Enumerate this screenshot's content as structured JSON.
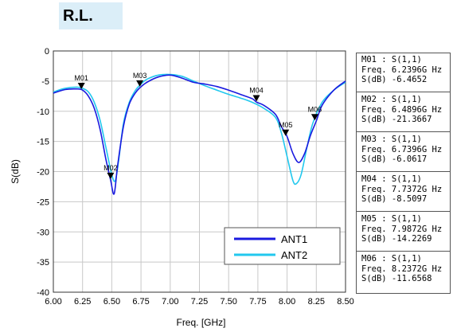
{
  "header": {
    "title": "R.L."
  },
  "chart_data": {
    "type": "line",
    "title": "R.L.",
    "xlabel": "Freq. [GHz]",
    "ylabel": "S(dB)",
    "xlim": [
      6.0,
      8.5
    ],
    "ylim": [
      -40,
      0
    ],
    "xticks": [
      "6.00",
      "6.25",
      "6.50",
      "6.75",
      "7.00",
      "7.25",
      "7.50",
      "7.75",
      "8.00",
      "8.25",
      "8.50"
    ],
    "yticks": [
      "0",
      "-5",
      "-10",
      "-15",
      "-20",
      "-25",
      "-30",
      "-35",
      "-40"
    ],
    "grid": true,
    "legend_position": "bottom-right",
    "series": [
      {
        "name": "ANT1",
        "color": "#1a1adf",
        "x": [
          6.0,
          6.1,
          6.2,
          6.25,
          6.3,
          6.35,
          6.4,
          6.45,
          6.49,
          6.52,
          6.55,
          6.6,
          6.65,
          6.7,
          6.74,
          6.8,
          6.9,
          7.0,
          7.1,
          7.2,
          7.3,
          7.4,
          7.5,
          7.6,
          7.7,
          7.74,
          7.8,
          7.9,
          7.95,
          8.0,
          8.05,
          8.1,
          8.15,
          8.2,
          8.25,
          8.3,
          8.4,
          8.5
        ],
        "y": [
          -7.0,
          -6.4,
          -6.3,
          -6.5,
          -7.5,
          -9.5,
          -13.0,
          -18.0,
          -21.4,
          -23.7,
          -19.0,
          -12.5,
          -8.8,
          -7.0,
          -6.1,
          -5.2,
          -4.3,
          -4.0,
          -4.5,
          -5.2,
          -5.5,
          -5.9,
          -6.5,
          -7.2,
          -7.9,
          -8.5,
          -9.0,
          -10.5,
          -12.5,
          -14.2,
          -17.0,
          -18.5,
          -17.0,
          -14.0,
          -11.6,
          -9.0,
          -6.5,
          -5.0
        ]
      },
      {
        "name": "ANT2",
        "color": "#22c8ee",
        "x": [
          6.0,
          6.1,
          6.2,
          6.25,
          6.3,
          6.35,
          6.4,
          6.45,
          6.5,
          6.53,
          6.56,
          6.6,
          6.65,
          6.7,
          6.75,
          6.8,
          6.9,
          7.0,
          7.1,
          7.2,
          7.3,
          7.4,
          7.5,
          7.6,
          7.7,
          7.8,
          7.9,
          7.95,
          8.0,
          8.05,
          8.08,
          8.12,
          8.17,
          8.22,
          8.3,
          8.4,
          8.5
        ],
        "y": [
          -6.8,
          -6.2,
          -6.0,
          -6.2,
          -6.8,
          -8.5,
          -11.5,
          -16.0,
          -20.5,
          -21.5,
          -18.0,
          -12.0,
          -8.5,
          -6.6,
          -5.5,
          -4.7,
          -4.0,
          -3.9,
          -4.2,
          -5.0,
          -5.8,
          -6.5,
          -7.2,
          -7.8,
          -8.5,
          -9.5,
          -11.0,
          -13.5,
          -17.5,
          -21.5,
          -22.0,
          -20.5,
          -16.0,
          -12.0,
          -8.5,
          -6.5,
          -5.2
        ]
      }
    ],
    "markers": [
      {
        "id": "M01",
        "x": 6.2396,
        "y": -6.4652,
        "title": "M01 : S(1,1)",
        "freq": "Freq. 6.2396G Hz",
        "sdb": "S(dB) -6.4652"
      },
      {
        "id": "M02",
        "x": 6.4896,
        "y": -21.3667,
        "title": "M02 : S(1,1)",
        "freq": "Freq. 6.4896G Hz",
        "sdb": "S(dB) -21.3667"
      },
      {
        "id": "M03",
        "x": 6.7396,
        "y": -6.0617,
        "title": "M03 : S(1,1)",
        "freq": "Freq. 6.7396G Hz",
        "sdb": "S(dB) -6.0617"
      },
      {
        "id": "M04",
        "x": 7.7372,
        "y": -8.5097,
        "title": "M04 : S(1,1)",
        "freq": "Freq. 7.7372G Hz",
        "sdb": "S(dB) -8.5097"
      },
      {
        "id": "M05",
        "x": 7.9872,
        "y": -14.2269,
        "title": "M05 : S(1,1)",
        "freq": "Freq. 7.9872G Hz",
        "sdb": "S(dB) -14.2269"
      },
      {
        "id": "M06",
        "x": 8.2372,
        "y": -11.6568,
        "title": "M06 : S(1,1)",
        "freq": "Freq. 8.2372G Hz",
        "sdb": "S(dB) -11.6568"
      }
    ]
  }
}
